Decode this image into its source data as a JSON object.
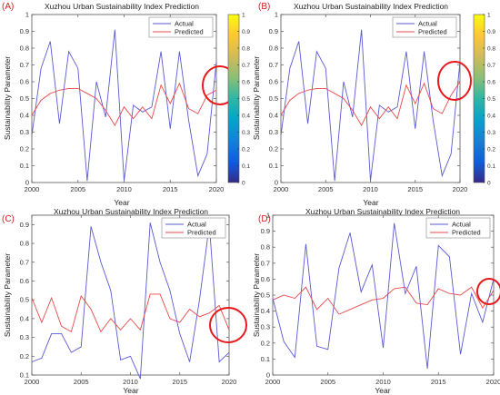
{
  "colors": {
    "actual": "#5a5ad2",
    "predicted": "#e8494b",
    "circle": "#e8181c",
    "panel_label": "#cc2222",
    "axis": "#555555"
  },
  "colorbar": {
    "ticks": [
      "0",
      "0.1",
      "0.2",
      "0.3",
      "0.4",
      "0.5",
      "0.6",
      "0.7",
      "0.8",
      "0.9",
      "1"
    ],
    "colormap": "parula"
  },
  "chart_data": [
    {
      "type": "line",
      "panel_label": "(A)",
      "title": "Xuzhou Urban Sustainability Index Prediction",
      "xlabel": "Year",
      "ylabel": "Sustainability Parameter",
      "xlim": [
        2000,
        2020
      ],
      "ylim": [
        0,
        1
      ],
      "xticks": [
        "2000",
        "2005",
        "2010",
        "2015",
        "2020"
      ],
      "yticks": [
        "0",
        "0.1",
        "0.2",
        "0.3",
        "0.4",
        "0.5",
        "0.6",
        "0.7",
        "0.8",
        "0.9",
        "1"
      ],
      "grid": false,
      "legend_position": "top-right",
      "highlight": {
        "x": 2020,
        "y": 0.59
      },
      "x": [
        2000,
        2001,
        2002,
        2003,
        2004,
        2005,
        2006,
        2007,
        2008,
        2009,
        2010,
        2011,
        2012,
        2013,
        2014,
        2015,
        2016,
        2017,
        2018,
        2019,
        2020
      ],
      "series": [
        {
          "name": "Actual",
          "values": [
            0.28,
            0.68,
            0.84,
            0.35,
            0.78,
            0.68,
            0.01,
            0.6,
            0.39,
            0.91,
            0.01,
            0.46,
            0.42,
            0.45,
            0.78,
            0.32,
            0.78,
            0.37,
            0.04,
            0.17,
            0.72
          ]
        },
        {
          "name": "Predicted",
          "values": [
            0.4,
            0.49,
            0.53,
            0.55,
            0.56,
            0.56,
            0.53,
            0.5,
            0.43,
            0.34,
            0.45,
            0.38,
            0.45,
            0.38,
            0.58,
            0.47,
            0.59,
            0.44,
            0.41,
            0.52,
            0.55
          ]
        }
      ]
    },
    {
      "type": "line",
      "panel_label": "(B)",
      "title": "Xuzhou Urban Sustainability Index Prediction",
      "xlabel": "Year",
      "ylabel": "Sustainability Parameter",
      "xlim": [
        2000,
        2020
      ],
      "ylim": [
        0,
        1
      ],
      "xticks": [
        "2000",
        "2005",
        "2010",
        "2015",
        "2020"
      ],
      "yticks": [
        "0",
        "0.1",
        "0.2",
        "0.3",
        "0.4",
        "0.5",
        "0.6",
        "0.7",
        "0.8",
        "0.9",
        "1"
      ],
      "grid": false,
      "legend_position": "top-right",
      "highlight": {
        "x": 2020,
        "y": 0.63
      },
      "x": [
        2000,
        2001,
        2002,
        2003,
        2004,
        2005,
        2006,
        2007,
        2008,
        2009,
        2010,
        2011,
        2012,
        2013,
        2014,
        2015,
        2016,
        2017,
        2018,
        2019,
        2020
      ],
      "series": [
        {
          "name": "Actual",
          "values": [
            0.28,
            0.68,
            0.84,
            0.35,
            0.78,
            0.68,
            0.01,
            0.6,
            0.39,
            0.91,
            0.01,
            0.46,
            0.42,
            0.45,
            0.78,
            0.32,
            0.78,
            0.37,
            0.04,
            0.17,
            0.72
          ]
        },
        {
          "name": "Predicted",
          "values": [
            0.4,
            0.49,
            0.53,
            0.55,
            0.56,
            0.56,
            0.53,
            0.5,
            0.43,
            0.34,
            0.45,
            0.38,
            0.45,
            0.38,
            0.58,
            0.47,
            0.59,
            0.44,
            0.41,
            0.52,
            0.6
          ]
        }
      ]
    },
    {
      "type": "line",
      "panel_label": "(C)",
      "title": "Xuzhou Urban Sustainability Index Prediction",
      "xlabel": "Year",
      "ylabel": "Sustainability Parameter",
      "xlim": [
        2000,
        2020
      ],
      "ylim": [
        0.1,
        0.95
      ],
      "xticks": [
        "2000",
        "2005",
        "2010",
        "2015",
        "2020"
      ],
      "yticks": [
        "0.1",
        "0.2",
        "0.3",
        "0.4",
        "0.5",
        "0.6",
        "0.7",
        "0.8",
        "0.9"
      ],
      "grid": false,
      "legend_position": "top-right",
      "highlight": {
        "x": 2019.8,
        "y": 0.28
      },
      "x": [
        2000,
        2001,
        2002,
        2003,
        2004,
        2005,
        2006,
        2007,
        2008,
        2009,
        2010,
        2011,
        2012,
        2013,
        2014,
        2015,
        2016,
        2017,
        2018,
        2019,
        2020
      ],
      "series": [
        {
          "name": "Actual",
          "values": [
            0.17,
            0.19,
            0.32,
            0.32,
            0.22,
            0.25,
            0.89,
            0.7,
            0.55,
            0.18,
            0.2,
            0.08,
            0.91,
            0.7,
            0.55,
            0.32,
            0.17,
            0.5,
            0.9,
            0.17,
            0.22
          ]
        },
        {
          "name": "Predicted",
          "values": [
            0.51,
            0.38,
            0.51,
            0.36,
            0.33,
            0.52,
            0.45,
            0.33,
            0.4,
            0.34,
            0.4,
            0.34,
            0.53,
            0.53,
            0.4,
            0.38,
            0.45,
            0.41,
            0.43,
            0.47,
            0.34
          ]
        }
      ]
    },
    {
      "type": "line",
      "panel_label": "(D)",
      "title": "Xuzhou Urban Sustainability Index Prediction",
      "xlabel": "Year",
      "ylabel": "Sustainability Parameter",
      "xlim": [
        2000,
        2020
      ],
      "ylim": [
        0,
        1
      ],
      "xticks": [
        "2000",
        "2005",
        "2010",
        "2015",
        "2020"
      ],
      "yticks": [
        "0",
        "0.1",
        "0.2",
        "0.3",
        "0.4",
        "0.5",
        "0.6",
        "0.7",
        "0.8",
        "0.9",
        "1"
      ],
      "grid": false,
      "legend_position": "top-right",
      "highlight": {
        "x": 2019.9,
        "y": 0.5
      },
      "x": [
        2000,
        2001,
        2002,
        2003,
        2004,
        2005,
        2006,
        2007,
        2008,
        2009,
        2010,
        2011,
        2012,
        2013,
        2014,
        2015,
        2016,
        2017,
        2018,
        2019,
        2020
      ],
      "series": [
        {
          "name": "Actual",
          "values": [
            0.48,
            0.21,
            0.11,
            0.82,
            0.18,
            0.16,
            0.67,
            0.89,
            0.52,
            0.69,
            0.17,
            0.95,
            0.51,
            0.68,
            0.04,
            0.81,
            0.74,
            0.13,
            0.51,
            0.33,
            0.6
          ]
        },
        {
          "name": "Predicted",
          "values": [
            0.47,
            0.5,
            0.48,
            0.55,
            0.41,
            0.48,
            0.38,
            0.41,
            0.44,
            0.47,
            0.48,
            0.54,
            0.55,
            0.45,
            0.44,
            0.54,
            0.51,
            0.5,
            0.55,
            0.42,
            0.53
          ]
        }
      ]
    }
  ]
}
